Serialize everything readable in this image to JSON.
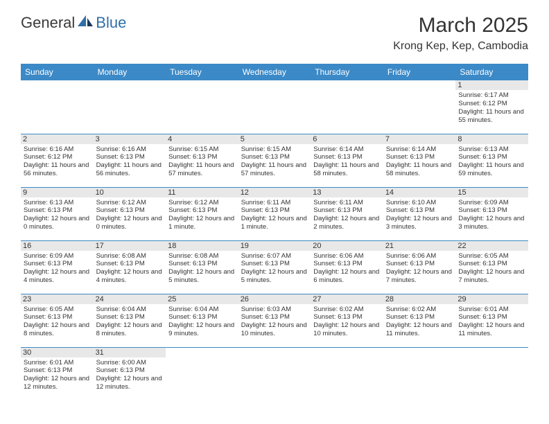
{
  "logo": {
    "general": "General",
    "blue": "Blue"
  },
  "title": "March 2025",
  "location": "Krong Kep, Kep, Cambodia",
  "colors": {
    "header_bg": "#3b89c7",
    "header_text": "#ffffff",
    "daynum_bg": "#e8e8e8",
    "row_border": "#3b89c7",
    "logo_blue": "#2f6fa8",
    "text": "#333333"
  },
  "weekdays": [
    "Sunday",
    "Monday",
    "Tuesday",
    "Wednesday",
    "Thursday",
    "Friday",
    "Saturday"
  ],
  "weeks": [
    [
      null,
      null,
      null,
      null,
      null,
      null,
      {
        "n": "1",
        "sr": "Sunrise: 6:17 AM",
        "ss": "Sunset: 6:12 PM",
        "dl": "Daylight: 11 hours and 55 minutes."
      }
    ],
    [
      {
        "n": "2",
        "sr": "Sunrise: 6:16 AM",
        "ss": "Sunset: 6:12 PM",
        "dl": "Daylight: 11 hours and 56 minutes."
      },
      {
        "n": "3",
        "sr": "Sunrise: 6:16 AM",
        "ss": "Sunset: 6:13 PM",
        "dl": "Daylight: 11 hours and 56 minutes."
      },
      {
        "n": "4",
        "sr": "Sunrise: 6:15 AM",
        "ss": "Sunset: 6:13 PM",
        "dl": "Daylight: 11 hours and 57 minutes."
      },
      {
        "n": "5",
        "sr": "Sunrise: 6:15 AM",
        "ss": "Sunset: 6:13 PM",
        "dl": "Daylight: 11 hours and 57 minutes."
      },
      {
        "n": "6",
        "sr": "Sunrise: 6:14 AM",
        "ss": "Sunset: 6:13 PM",
        "dl": "Daylight: 11 hours and 58 minutes."
      },
      {
        "n": "7",
        "sr": "Sunrise: 6:14 AM",
        "ss": "Sunset: 6:13 PM",
        "dl": "Daylight: 11 hours and 58 minutes."
      },
      {
        "n": "8",
        "sr": "Sunrise: 6:13 AM",
        "ss": "Sunset: 6:13 PM",
        "dl": "Daylight: 11 hours and 59 minutes."
      }
    ],
    [
      {
        "n": "9",
        "sr": "Sunrise: 6:13 AM",
        "ss": "Sunset: 6:13 PM",
        "dl": "Daylight: 12 hours and 0 minutes."
      },
      {
        "n": "10",
        "sr": "Sunrise: 6:12 AM",
        "ss": "Sunset: 6:13 PM",
        "dl": "Daylight: 12 hours and 0 minutes."
      },
      {
        "n": "11",
        "sr": "Sunrise: 6:12 AM",
        "ss": "Sunset: 6:13 PM",
        "dl": "Daylight: 12 hours and 1 minute."
      },
      {
        "n": "12",
        "sr": "Sunrise: 6:11 AM",
        "ss": "Sunset: 6:13 PM",
        "dl": "Daylight: 12 hours and 1 minute."
      },
      {
        "n": "13",
        "sr": "Sunrise: 6:11 AM",
        "ss": "Sunset: 6:13 PM",
        "dl": "Daylight: 12 hours and 2 minutes."
      },
      {
        "n": "14",
        "sr": "Sunrise: 6:10 AM",
        "ss": "Sunset: 6:13 PM",
        "dl": "Daylight: 12 hours and 3 minutes."
      },
      {
        "n": "15",
        "sr": "Sunrise: 6:09 AM",
        "ss": "Sunset: 6:13 PM",
        "dl": "Daylight: 12 hours and 3 minutes."
      }
    ],
    [
      {
        "n": "16",
        "sr": "Sunrise: 6:09 AM",
        "ss": "Sunset: 6:13 PM",
        "dl": "Daylight: 12 hours and 4 minutes."
      },
      {
        "n": "17",
        "sr": "Sunrise: 6:08 AM",
        "ss": "Sunset: 6:13 PM",
        "dl": "Daylight: 12 hours and 4 minutes."
      },
      {
        "n": "18",
        "sr": "Sunrise: 6:08 AM",
        "ss": "Sunset: 6:13 PM",
        "dl": "Daylight: 12 hours and 5 minutes."
      },
      {
        "n": "19",
        "sr": "Sunrise: 6:07 AM",
        "ss": "Sunset: 6:13 PM",
        "dl": "Daylight: 12 hours and 5 minutes."
      },
      {
        "n": "20",
        "sr": "Sunrise: 6:06 AM",
        "ss": "Sunset: 6:13 PM",
        "dl": "Daylight: 12 hours and 6 minutes."
      },
      {
        "n": "21",
        "sr": "Sunrise: 6:06 AM",
        "ss": "Sunset: 6:13 PM",
        "dl": "Daylight: 12 hours and 7 minutes."
      },
      {
        "n": "22",
        "sr": "Sunrise: 6:05 AM",
        "ss": "Sunset: 6:13 PM",
        "dl": "Daylight: 12 hours and 7 minutes."
      }
    ],
    [
      {
        "n": "23",
        "sr": "Sunrise: 6:05 AM",
        "ss": "Sunset: 6:13 PM",
        "dl": "Daylight: 12 hours and 8 minutes."
      },
      {
        "n": "24",
        "sr": "Sunrise: 6:04 AM",
        "ss": "Sunset: 6:13 PM",
        "dl": "Daylight: 12 hours and 8 minutes."
      },
      {
        "n": "25",
        "sr": "Sunrise: 6:04 AM",
        "ss": "Sunset: 6:13 PM",
        "dl": "Daylight: 12 hours and 9 minutes."
      },
      {
        "n": "26",
        "sr": "Sunrise: 6:03 AM",
        "ss": "Sunset: 6:13 PM",
        "dl": "Daylight: 12 hours and 10 minutes."
      },
      {
        "n": "27",
        "sr": "Sunrise: 6:02 AM",
        "ss": "Sunset: 6:13 PM",
        "dl": "Daylight: 12 hours and 10 minutes."
      },
      {
        "n": "28",
        "sr": "Sunrise: 6:02 AM",
        "ss": "Sunset: 6:13 PM",
        "dl": "Daylight: 12 hours and 11 minutes."
      },
      {
        "n": "29",
        "sr": "Sunrise: 6:01 AM",
        "ss": "Sunset: 6:13 PM",
        "dl": "Daylight: 12 hours and 11 minutes."
      }
    ],
    [
      {
        "n": "30",
        "sr": "Sunrise: 6:01 AM",
        "ss": "Sunset: 6:13 PM",
        "dl": "Daylight: 12 hours and 12 minutes."
      },
      {
        "n": "31",
        "sr": "Sunrise: 6:00 AM",
        "ss": "Sunset: 6:13 PM",
        "dl": "Daylight: 12 hours and 12 minutes."
      },
      null,
      null,
      null,
      null,
      null
    ]
  ]
}
